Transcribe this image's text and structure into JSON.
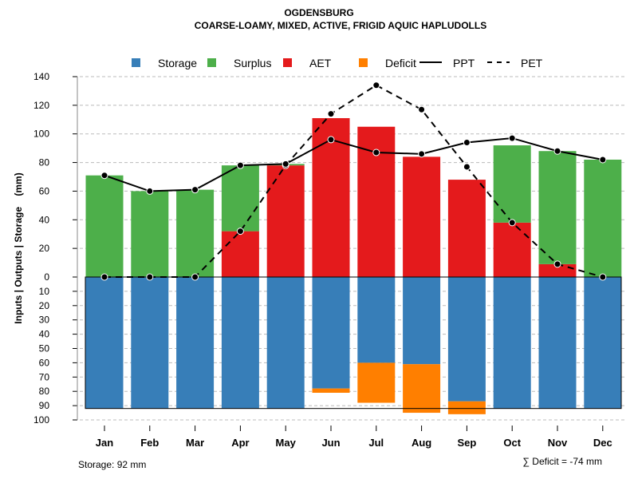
{
  "chart_data": {
    "type": "bar",
    "title": "OGDENSBURG",
    "subtitle": "COARSE-LOAMY, MIXED, ACTIVE, FRIGID AQUIC HAPLUDOLLS",
    "ylabel": "Inputs | Outputs | Storage    (mm)",
    "xlabel": "",
    "categories": [
      "Jan",
      "Feb",
      "Mar",
      "Apr",
      "May",
      "Jun",
      "Jul",
      "Aug",
      "Sep",
      "Oct",
      "Nov",
      "Dec"
    ],
    "ylim_upper": [
      0,
      140
    ],
    "ylim_lower": [
      0,
      100
    ],
    "yticks_upper": [
      "0",
      "20",
      "40",
      "60",
      "80",
      "100",
      "120",
      "140"
    ],
    "yticks_lower": [
      "10",
      "20",
      "30",
      "40",
      "50",
      "60",
      "70",
      "80",
      "90",
      "100"
    ],
    "grid": true,
    "legend_position": "top",
    "legend": [
      {
        "name": "Storage",
        "type": "box",
        "color": "#377EB8"
      },
      {
        "name": "Surplus",
        "type": "box",
        "color": "#4DAF4A"
      },
      {
        "name": "AET",
        "type": "box",
        "color": "#E41A1C"
      },
      {
        "name": "Deficit",
        "type": "box",
        "color": "#FF7F00"
      },
      {
        "name": "PPT",
        "type": "line",
        "color": "#000000"
      },
      {
        "name": "PET",
        "type": "dashed",
        "color": "#000000"
      }
    ],
    "series": [
      {
        "name": "AET",
        "values": [
          0,
          0,
          0,
          32,
          78,
          111,
          105,
          84,
          68,
          38,
          9,
          0
        ]
      },
      {
        "name": "Surplus",
        "values": [
          71,
          60,
          61,
          46,
          1,
          0,
          0,
          0,
          0,
          54,
          79,
          82
        ]
      },
      {
        "name": "Storage",
        "values": [
          92,
          92,
          92,
          92,
          92,
          78,
          60,
          61,
          87,
          92,
          92,
          92
        ]
      },
      {
        "name": "Deficit",
        "values": [
          0,
          0,
          0,
          0,
          0,
          3,
          28,
          34,
          9,
          0,
          0,
          0
        ]
      },
      {
        "name": "PPT",
        "values": [
          71,
          60,
          61,
          78,
          79,
          96,
          87,
          86,
          94,
          97,
          88,
          82
        ]
      },
      {
        "name": "PET",
        "values": [
          0,
          0,
          0,
          32,
          78,
          114,
          134,
          117,
          77,
          38,
          9,
          0
        ]
      }
    ],
    "storage_capacity": 92,
    "annotations": {
      "storage": "Storage: 92 mm",
      "deficit": "∑ Deficit = -74 mm"
    }
  }
}
